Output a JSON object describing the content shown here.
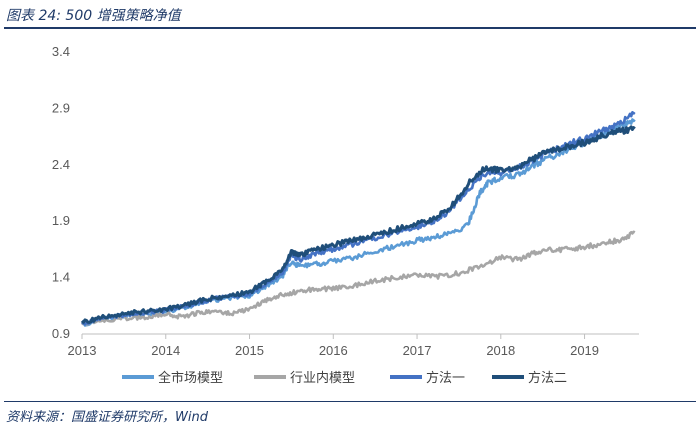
{
  "header": {
    "title": "图表 24:  500 增强策略净值"
  },
  "footer": {
    "source": "资料来源：国盛证券研究所，Wind"
  },
  "chart_data": {
    "type": "line",
    "title": "500 增强策略净值",
    "xlabel": "",
    "ylabel": "",
    "xlim": [
      2013.0,
      2019.65
    ],
    "ylim": [
      0.9,
      3.4
    ],
    "yticks": [
      "0.9",
      "1.4",
      "1.9",
      "2.4",
      "2.9",
      "3.4"
    ],
    "xticks": [
      "2013",
      "2014",
      "2015",
      "2016",
      "2017",
      "2018",
      "2019"
    ],
    "grid": false,
    "legend_position": "bottom",
    "series": [
      {
        "name": "全市场模型",
        "color": "#5b9bd5",
        "x": [
          2013.0,
          2013.25,
          2013.5,
          2013.75,
          2014.0,
          2014.25,
          2014.5,
          2014.75,
          2015.0,
          2015.2,
          2015.4,
          2015.5,
          2015.6,
          2015.8,
          2016.0,
          2016.25,
          2016.5,
          2016.75,
          2017.0,
          2017.2,
          2017.4,
          2017.6,
          2017.75,
          2017.85,
          2018.0,
          2018.2,
          2018.4,
          2018.6,
          2018.8,
          2019.0,
          2019.2,
          2019.4,
          2019.6
        ],
        "y": [
          0.98,
          1.04,
          1.06,
          1.08,
          1.1,
          1.14,
          1.19,
          1.22,
          1.24,
          1.32,
          1.42,
          1.54,
          1.5,
          1.52,
          1.55,
          1.58,
          1.63,
          1.68,
          1.73,
          1.76,
          1.8,
          1.86,
          2.15,
          2.24,
          2.28,
          2.31,
          2.4,
          2.47,
          2.54,
          2.6,
          2.66,
          2.73,
          2.8
        ]
      },
      {
        "name": "行业内模型",
        "color": "#a6a6a6",
        "x": [
          2013.0,
          2013.25,
          2013.5,
          2013.75,
          2014.0,
          2014.2,
          2014.4,
          2014.6,
          2014.8,
          2015.0,
          2015.2,
          2015.4,
          2015.6,
          2015.8,
          2016.0,
          2016.25,
          2016.5,
          2016.75,
          2017.0,
          2017.25,
          2017.5,
          2017.75,
          2018.0,
          2018.2,
          2018.4,
          2018.6,
          2018.8,
          2019.0,
          2019.2,
          2019.4,
          2019.6
        ],
        "y": [
          0.99,
          1.02,
          1.04,
          1.05,
          1.08,
          1.05,
          1.09,
          1.1,
          1.08,
          1.12,
          1.2,
          1.25,
          1.28,
          1.3,
          1.3,
          1.33,
          1.37,
          1.4,
          1.42,
          1.41,
          1.44,
          1.5,
          1.58,
          1.56,
          1.62,
          1.65,
          1.65,
          1.67,
          1.7,
          1.73,
          1.8
        ]
      },
      {
        "name": "方法一",
        "color": "#4472c4",
        "x": [
          2013.0,
          2013.25,
          2013.5,
          2013.75,
          2014.0,
          2014.25,
          2014.5,
          2014.75,
          2015.0,
          2015.2,
          2015.4,
          2015.5,
          2015.6,
          2015.8,
          2016.0,
          2016.25,
          2016.5,
          2016.75,
          2017.0,
          2017.2,
          2017.4,
          2017.6,
          2017.8,
          2018.0,
          2018.2,
          2018.4,
          2018.6,
          2018.8,
          2019.0,
          2019.2,
          2019.4,
          2019.6
        ],
        "y": [
          0.99,
          1.04,
          1.07,
          1.09,
          1.11,
          1.15,
          1.2,
          1.23,
          1.26,
          1.35,
          1.45,
          1.6,
          1.56,
          1.62,
          1.65,
          1.7,
          1.75,
          1.8,
          1.85,
          1.9,
          2.0,
          2.17,
          2.32,
          2.33,
          2.37,
          2.45,
          2.52,
          2.58,
          2.63,
          2.7,
          2.76,
          2.85
        ]
      },
      {
        "name": "方法二",
        "color": "#1f4e79",
        "x": [
          2013.0,
          2013.25,
          2013.5,
          2013.75,
          2014.0,
          2014.25,
          2014.5,
          2014.75,
          2015.0,
          2015.2,
          2015.4,
          2015.5,
          2015.6,
          2015.8,
          2016.0,
          2016.25,
          2016.5,
          2016.75,
          2017.0,
          2017.2,
          2017.4,
          2017.6,
          2017.8,
          2018.0,
          2018.2,
          2018.4,
          2018.6,
          2018.8,
          2019.0,
          2019.2,
          2019.4,
          2019.6
        ],
        "y": [
          1.0,
          1.05,
          1.08,
          1.1,
          1.12,
          1.16,
          1.21,
          1.24,
          1.27,
          1.37,
          1.47,
          1.63,
          1.6,
          1.65,
          1.69,
          1.73,
          1.78,
          1.83,
          1.88,
          1.92,
          2.02,
          2.22,
          2.37,
          2.35,
          2.38,
          2.46,
          2.53,
          2.56,
          2.6,
          2.65,
          2.7,
          2.72
        ]
      }
    ]
  }
}
